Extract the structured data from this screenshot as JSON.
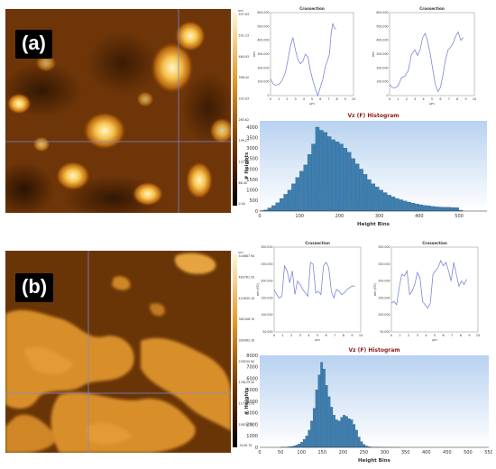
{
  "panels": [
    {
      "label": "(a)",
      "scale": {
        "unit": "nm",
        "ticks": [
          "597.83",
          "531.23",
          "464.93",
          "398.42",
          "332.03",
          "265.62",
          "199.27",
          "132.81",
          "66.40",
          "0.00"
        ]
      },
      "colors": {
        "cross": "#7c86d8",
        "bars": "#3d7fb0",
        "hist_bg_top": "#b8d2f0",
        "hist_bg_bottom": "#ffffff",
        "title": "#8b1a1a"
      }
    },
    {
      "label": "(b)",
      "scale": {
        "unit": "nm",
        "ticks": [
          "544887.90",
          "483761.50",
          "422635.10",
          "361508.70",
          "300382.30",
          "239255.90",
          "178129.50",
          "117003.10",
          "55876.70",
          "-5249.70"
        ]
      },
      "colors": {
        "cross": "#7c86d8",
        "bars": "#3d7fb0",
        "hist_bg_top": "#b8d2f0",
        "hist_bg_bottom": "#ffffff",
        "title": "#8b1a1a"
      }
    }
  ],
  "chart_data": [
    {
      "type": "line",
      "panel": "(a)",
      "title": "Crossection",
      "xlabel": "µm",
      "ylabel": "nm",
      "xlim": [
        0,
        10
      ],
      "ylim": [
        0,
        600000
      ],
      "yticks": [
        "0",
        "100.000",
        "200.000",
        "300.000",
        "400.000",
        "500.000",
        "600.000"
      ],
      "xticks": [
        "0",
        "1",
        "2",
        "3",
        "4",
        "5",
        "6",
        "7",
        "8",
        "9",
        "10"
      ],
      "x": [
        0,
        0.3,
        0.6,
        1.0,
        1.4,
        1.8,
        2.1,
        2.4,
        2.7,
        3.0,
        3.3,
        3.6,
        3.9,
        4.2,
        4.5,
        4.8,
        5.1,
        5.4,
        5.7,
        6.0,
        6.3,
        6.6,
        6.9,
        7.1,
        7.3,
        7.5,
        7.7,
        7.9
      ],
      "values": [
        120000,
        85000,
        75000,
        80000,
        110000,
        170000,
        260000,
        360000,
        420000,
        330000,
        260000,
        230000,
        250000,
        300000,
        280000,
        180000,
        110000,
        50000,
        0,
        60000,
        120000,
        210000,
        260000,
        300000,
        450000,
        520000,
        490000,
        480000
      ]
    },
    {
      "type": "line",
      "panel": "(a)",
      "title": "Crossection",
      "xlabel": "µm",
      "ylabel": "nm",
      "xlim": [
        0,
        10
      ],
      "ylim": [
        0,
        600000
      ],
      "yticks": [
        "0",
        "100.000",
        "200.000",
        "300.000",
        "400.000",
        "500.000",
        "600.000"
      ],
      "xticks": [
        "0",
        "1",
        "2",
        "3",
        "4",
        "5",
        "6",
        "7",
        "8",
        "9",
        "10"
      ],
      "x": [
        0,
        0.3,
        0.6,
        1.0,
        1.4,
        1.8,
        2.2,
        2.6,
        3.0,
        3.3,
        3.6,
        3.9,
        4.2,
        4.5,
        4.8,
        5.1,
        5.4,
        5.7,
        6.0,
        6.3,
        6.6,
        6.9,
        7.2,
        7.5,
        7.8,
        8.1,
        8.4,
        8.7
      ],
      "values": [
        80000,
        60000,
        55000,
        70000,
        130000,
        140000,
        180000,
        300000,
        330000,
        290000,
        330000,
        420000,
        450000,
        390000,
        300000,
        190000,
        80000,
        30000,
        60000,
        150000,
        260000,
        330000,
        350000,
        380000,
        430000,
        460000,
        400000,
        420000
      ]
    },
    {
      "type": "bar",
      "panel": "(a)",
      "title": "Vz (F) Histogram",
      "xlabel": "Height Bins",
      "ylabel": "# Heights",
      "xlim": [
        0,
        570
      ],
      "ylim": [
        0,
        4300
      ],
      "xticks": [
        "0",
        "100",
        "200",
        "300",
        "400",
        "500"
      ],
      "yticks": [
        "0",
        "500",
        "1000",
        "1500",
        "2000",
        "2500",
        "3000",
        "3500",
        "4000"
      ],
      "bin_width": 10,
      "bin_start": 0,
      "values": [
        20,
        50,
        150,
        260,
        400,
        600,
        800,
        1000,
        1300,
        1600,
        1900,
        2200,
        2700,
        3200,
        4000,
        3850,
        3750,
        3550,
        3400,
        3300,
        3200,
        3000,
        2800,
        2500,
        2250,
        2000,
        1750,
        1500,
        1300,
        1150,
        1000,
        880,
        760,
        680,
        600,
        540,
        480,
        430,
        380,
        340,
        300,
        270,
        250,
        220,
        200,
        190,
        180,
        180,
        170,
        160,
        30,
        0,
        0,
        0,
        0,
        0,
        0
      ]
    },
    {
      "type": "line",
      "panel": "(b)",
      "title": "Crossection",
      "xlabel": "µm",
      "ylabel": "nm (YD)",
      "xlim": [
        0,
        10
      ],
      "ylim": [
        50000,
        300000
      ],
      "yticks": [
        "50.000",
        "100.000",
        "150.000",
        "200.000",
        "250.000",
        "300.000"
      ],
      "xticks": [
        "0",
        "1",
        "2",
        "3",
        "4",
        "5",
        "6",
        "7",
        "8",
        "9",
        "10"
      ],
      "x": [
        0,
        0.3,
        0.6,
        0.9,
        1.2,
        1.5,
        1.8,
        2.1,
        2.4,
        2.7,
        3.0,
        3.3,
        3.6,
        3.9,
        4.2,
        4.5,
        4.8,
        5.1,
        5.4,
        5.7,
        6.0,
        6.3,
        6.6,
        6.9,
        7.2,
        7.5,
        7.8,
        8.1,
        8.4,
        8.7,
        9.0,
        9.3
      ],
      "values": [
        175000,
        160000,
        150000,
        155000,
        245000,
        230000,
        195000,
        230000,
        160000,
        200000,
        190000,
        175000,
        165000,
        155000,
        255000,
        250000,
        165000,
        170000,
        160000,
        245000,
        255000,
        240000,
        170000,
        150000,
        175000,
        170000,
        160000,
        165000,
        175000,
        180000,
        185000,
        185000
      ]
    },
    {
      "type": "line",
      "panel": "(b)",
      "title": "Crossection",
      "xlabel": "µm",
      "ylabel": "nm (YD)",
      "xlim": [
        0,
        10
      ],
      "ylim": [
        50000,
        300000
      ],
      "yticks": [
        "50.000",
        "100.000",
        "150.000",
        "200.000",
        "250.000",
        "300.000"
      ],
      "xticks": [
        "0",
        "1",
        "2",
        "3",
        "4",
        "5",
        "6",
        "7",
        "8",
        "9",
        "10"
      ],
      "x": [
        0,
        0.3,
        0.6,
        0.9,
        1.2,
        1.5,
        1.8,
        2.1,
        2.4,
        2.7,
        3.0,
        3.3,
        3.6,
        3.9,
        4.2,
        4.5,
        4.8,
        5.1,
        5.4,
        5.7,
        6.0,
        6.3,
        6.6,
        6.9,
        7.2,
        7.5,
        7.8,
        8.1,
        8.4,
        8.7
      ],
      "values": [
        135000,
        140000,
        130000,
        180000,
        220000,
        215000,
        230000,
        160000,
        170000,
        190000,
        225000,
        210000,
        140000,
        130000,
        120000,
        135000,
        220000,
        230000,
        240000,
        260000,
        245000,
        255000,
        230000,
        200000,
        255000,
        220000,
        185000,
        200000,
        190000,
        205000
      ]
    },
    {
      "type": "bar",
      "panel": "(b)",
      "title": "Vz (F) Histogram",
      "xlabel": "Height Bins",
      "ylabel": "# Heights",
      "xlim": [
        0,
        550
      ],
      "ylim": [
        0,
        8000
      ],
      "xticks": [
        "0",
        "50",
        "100",
        "150",
        "200",
        "250",
        "300",
        "350",
        "400",
        "450",
        "500",
        "550"
      ],
      "yticks": [
        "0",
        "1000",
        "2000",
        "3000",
        "4000",
        "5000",
        "6000",
        "7000",
        "8000"
      ],
      "bin_width": 6,
      "bin_start": 50,
      "values": [
        10,
        20,
        30,
        50,
        80,
        120,
        200,
        300,
        450,
        700,
        1000,
        1500,
        2300,
        3400,
        5000,
        6300,
        7400,
        6800,
        5400,
        4400,
        3500,
        2800,
        2400,
        2300,
        2600,
        2800,
        2700,
        2500,
        2400,
        2000,
        1500,
        900,
        500,
        250,
        120,
        60,
        30,
        20,
        15,
        10,
        8,
        5,
        5,
        3,
        3,
        2,
        2,
        1
      ]
    }
  ]
}
